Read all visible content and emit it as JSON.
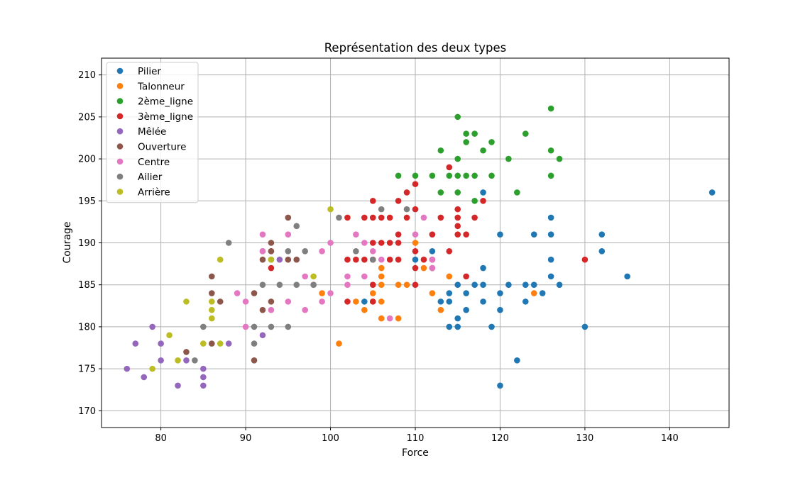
{
  "chart_data": {
    "type": "scatter",
    "title": "Représentation des deux types",
    "xlabel": "Force",
    "ylabel": "Courage",
    "xlim": [
      73,
      147
    ],
    "ylim": [
      168,
      212
    ],
    "xticks": [
      80,
      90,
      100,
      110,
      120,
      130,
      140
    ],
    "yticks": [
      170,
      175,
      180,
      185,
      190,
      195,
      200,
      205,
      210
    ],
    "grid": true,
    "legend_position": "top-left",
    "series": [
      {
        "name": "Pilier",
        "color": "#1f77b4",
        "points": [
          [
            145,
            196
          ],
          [
            135,
            186
          ],
          [
            132,
            191
          ],
          [
            132,
            189
          ],
          [
            130,
            180
          ],
          [
            127,
            185
          ],
          [
            126,
            193
          ],
          [
            126,
            191
          ],
          [
            126,
            188
          ],
          [
            126,
            186
          ],
          [
            125,
            184
          ],
          [
            124,
            191
          ],
          [
            124,
            185
          ],
          [
            123,
            185
          ],
          [
            123,
            183
          ],
          [
            122,
            176
          ],
          [
            121,
            185
          ],
          [
            120,
            191
          ],
          [
            120,
            184
          ],
          [
            120,
            182
          ],
          [
            120,
            173
          ],
          [
            119,
            180
          ],
          [
            118,
            196
          ],
          [
            118,
            187
          ],
          [
            118,
            185
          ],
          [
            118,
            183
          ],
          [
            117,
            185
          ],
          [
            116,
            184
          ],
          [
            116,
            182
          ],
          [
            115,
            185
          ],
          [
            115,
            181
          ],
          [
            115,
            180
          ],
          [
            114,
            184
          ],
          [
            114,
            183
          ],
          [
            114,
            180
          ],
          [
            113,
            183
          ],
          [
            112,
            189
          ],
          [
            110,
            188
          ],
          [
            104,
            183
          ]
        ]
      },
      {
        "name": "Talonneur",
        "color": "#ff7f0e",
        "points": [
          [
            124,
            184
          ],
          [
            114,
            186
          ],
          [
            113,
            182
          ],
          [
            112,
            184
          ],
          [
            111,
            187
          ],
          [
            110,
            190
          ],
          [
            109,
            185
          ],
          [
            108,
            185
          ],
          [
            108,
            181
          ],
          [
            106,
            187
          ],
          [
            106,
            186
          ],
          [
            106,
            185
          ],
          [
            106,
            183
          ],
          [
            106,
            181
          ],
          [
            105,
            184
          ],
          [
            105,
            183
          ],
          [
            104,
            182
          ],
          [
            103,
            183
          ],
          [
            101,
            178
          ],
          [
            99,
            184
          ]
        ]
      },
      {
        "name": "2ème_ligne",
        "color": "#2ca02c",
        "points": [
          [
            126,
            206
          ],
          [
            126,
            201
          ],
          [
            126,
            198
          ],
          [
            127,
            200
          ],
          [
            123,
            203
          ],
          [
            122,
            196
          ],
          [
            121,
            200
          ],
          [
            119,
            202
          ],
          [
            119,
            198
          ],
          [
            118,
            201
          ],
          [
            117,
            203
          ],
          [
            117,
            198
          ],
          [
            117,
            195
          ],
          [
            116,
            203
          ],
          [
            116,
            202
          ],
          [
            116,
            198
          ],
          [
            115,
            205
          ],
          [
            115,
            200
          ],
          [
            115,
            198
          ],
          [
            115,
            196
          ],
          [
            114,
            198
          ],
          [
            113,
            201
          ],
          [
            113,
            196
          ],
          [
            112,
            198
          ],
          [
            110,
            198
          ],
          [
            108,
            198
          ]
        ]
      },
      {
        "name": "3ème_ligne",
        "color": "#d62728",
        "points": [
          [
            130,
            188
          ],
          [
            118,
            195
          ],
          [
            117,
            193
          ],
          [
            116,
            191
          ],
          [
            116,
            186
          ],
          [
            115,
            194
          ],
          [
            115,
            193
          ],
          [
            115,
            192
          ],
          [
            115,
            191
          ],
          [
            114,
            199
          ],
          [
            114,
            189
          ],
          [
            113,
            193
          ],
          [
            112,
            191
          ],
          [
            112,
            188
          ],
          [
            112,
            187
          ],
          [
            111,
            188
          ],
          [
            110,
            197
          ],
          [
            110,
            194
          ],
          [
            110,
            189
          ],
          [
            110,
            187
          ],
          [
            110,
            185
          ],
          [
            109,
            196
          ],
          [
            109,
            193
          ],
          [
            108,
            195
          ],
          [
            108,
            191
          ],
          [
            108,
            190
          ],
          [
            108,
            188
          ],
          [
            107,
            193
          ],
          [
            107,
            190
          ],
          [
            107,
            188
          ],
          [
            106,
            193
          ],
          [
            106,
            190
          ],
          [
            105,
            195
          ],
          [
            105,
            193
          ],
          [
            105,
            190
          ],
          [
            105,
            188
          ],
          [
            105,
            185
          ],
          [
            105,
            183
          ],
          [
            104,
            193
          ],
          [
            104,
            188
          ],
          [
            103,
            188
          ],
          [
            102,
            193
          ],
          [
            102,
            188
          ],
          [
            102,
            183
          ],
          [
            93,
            187
          ]
        ]
      },
      {
        "name": "Mêlée",
        "color": "#9467bd",
        "points": [
          [
            76,
            175
          ],
          [
            77,
            178
          ],
          [
            78,
            174
          ],
          [
            79,
            180
          ],
          [
            80,
            178
          ],
          [
            80,
            176
          ],
          [
            82,
            173
          ],
          [
            83,
            176
          ],
          [
            85,
            175
          ],
          [
            85,
            174
          ],
          [
            85,
            173
          ],
          [
            88,
            178
          ],
          [
            92,
            179
          ],
          [
            92,
            189
          ],
          [
            93,
            189
          ],
          [
            94,
            188
          ]
        ]
      },
      {
        "name": "Ouverture",
        "color": "#8c564b",
        "points": [
          [
            83,
            177
          ],
          [
            86,
            186
          ],
          [
            86,
            184
          ],
          [
            86,
            178
          ],
          [
            87,
            183
          ],
          [
            91,
            184
          ],
          [
            91,
            176
          ],
          [
            92,
            188
          ],
          [
            92,
            182
          ],
          [
            93,
            190
          ],
          [
            93,
            189
          ],
          [
            93,
            183
          ],
          [
            95,
            193
          ],
          [
            95,
            188
          ],
          [
            96,
            188
          ]
        ]
      },
      {
        "name": "Centre",
        "color": "#e377c2",
        "points": [
          [
            89,
            184
          ],
          [
            90,
            183
          ],
          [
            90,
            180
          ],
          [
            92,
            191
          ],
          [
            92,
            189
          ],
          [
            93,
            182
          ],
          [
            95,
            191
          ],
          [
            95,
            183
          ],
          [
            97,
            186
          ],
          [
            97,
            182
          ],
          [
            98,
            185
          ],
          [
            99,
            189
          ],
          [
            99,
            183
          ],
          [
            100,
            190
          ],
          [
            100,
            184
          ],
          [
            102,
            186
          ],
          [
            102,
            185
          ],
          [
            103,
            191
          ],
          [
            104,
            190
          ],
          [
            104,
            186
          ],
          [
            105,
            189
          ],
          [
            106,
            188
          ],
          [
            107,
            181
          ],
          [
            110,
            191
          ],
          [
            111,
            193
          ],
          [
            112,
            188
          ],
          [
            112,
            187
          ]
        ]
      },
      {
        "name": "Ailier",
        "color": "#7f7f7f",
        "points": [
          [
            84,
            176
          ],
          [
            85,
            180
          ],
          [
            88,
            190
          ],
          [
            91,
            180
          ],
          [
            91,
            178
          ],
          [
            92,
            185
          ],
          [
            93,
            188
          ],
          [
            93,
            180
          ],
          [
            94,
            185
          ],
          [
            95,
            189
          ],
          [
            95,
            180
          ],
          [
            96,
            192
          ],
          [
            96,
            185
          ],
          [
            97,
            189
          ],
          [
            98,
            185
          ],
          [
            101,
            193
          ],
          [
            103,
            189
          ],
          [
            105,
            188
          ],
          [
            106,
            194
          ],
          [
            109,
            194
          ]
        ]
      },
      {
        "name": "Arrière",
        "color": "#bcbd22",
        "points": [
          [
            79,
            175
          ],
          [
            81,
            179
          ],
          [
            82,
            176
          ],
          [
            83,
            183
          ],
          [
            85,
            178
          ],
          [
            86,
            183
          ],
          [
            86,
            182
          ],
          [
            86,
            181
          ],
          [
            87,
            188
          ],
          [
            87,
            178
          ],
          [
            93,
            188
          ],
          [
            98,
            186
          ],
          [
            100,
            194
          ]
        ]
      }
    ]
  }
}
